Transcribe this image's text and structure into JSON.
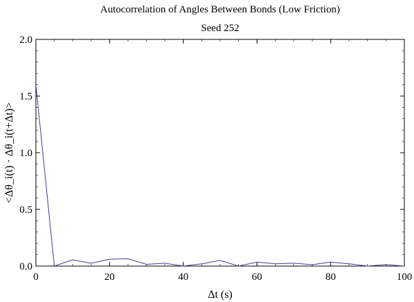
{
  "chart_data": {
    "type": "line",
    "title": "Autocorrelation of Angles Between Bonds (Low Friction)",
    "subtitle": "Seed 252",
    "xlabel": "Δt (s)",
    "ylabel": "<Δθ_i(t) · Δθ_i(t+Δt)>",
    "xlim": [
      0,
      100
    ],
    "ylim": [
      0,
      2.0
    ],
    "x_ticks": [
      0,
      20,
      40,
      60,
      80,
      100
    ],
    "x_tick_labels": [
      "0",
      "20",
      "40",
      "60",
      "80",
      "100"
    ],
    "y_ticks": [
      0,
      0.5,
      1.0,
      1.5,
      2.0
    ],
    "y_tick_labels": [
      "0.0",
      "0.5",
      "1.0",
      "1.5",
      "2.0"
    ],
    "grid": false,
    "line_color": "#3b3b9b",
    "series": [
      {
        "x": [
          0,
          5,
          10,
          15,
          20,
          25,
          30,
          35,
          40,
          45,
          50,
          55,
          60,
          65,
          70,
          75,
          80,
          85,
          90,
          95,
          100
        ],
        "y": [
          1.6,
          0.0,
          0.055,
          0.025,
          0.06,
          0.065,
          0.015,
          0.025,
          0.0,
          0.02,
          0.05,
          0.0,
          0.035,
          0.02,
          0.025,
          0.012,
          0.035,
          0.02,
          0.0,
          0.013,
          0.0
        ]
      }
    ]
  }
}
